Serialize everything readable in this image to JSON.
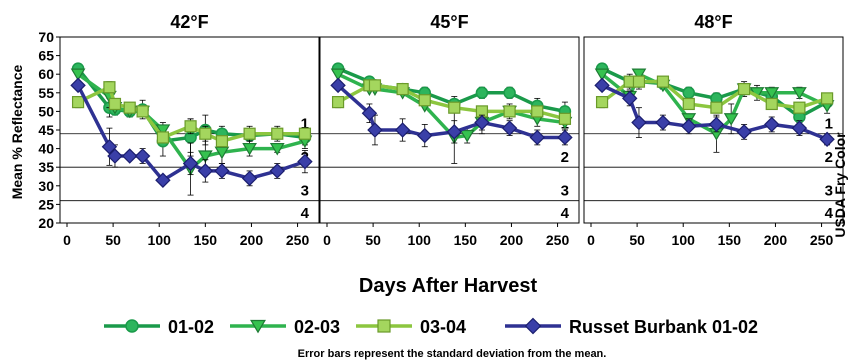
{
  "chart_data": {
    "type": "line",
    "xlabel": "Days After Harvest",
    "ylabel": "Mean % Reflectance",
    "y2label": "USDA Fry Color",
    "ylim": [
      20,
      70
    ],
    "xlim": [
      0,
      270
    ],
    "y_ticks": [
      "20",
      "25",
      "30",
      "35",
      "40",
      "45",
      "50",
      "55",
      "60",
      "65",
      "70"
    ],
    "x_ticks": [
      "0",
      "50",
      "100",
      "150",
      "200",
      "250"
    ],
    "note": "Error bars represent the standard deviation from the mean.",
    "fry_color_lines": [
      {
        "label": "1",
        "y": 44
      },
      {
        "label": "2",
        "y": 35
      },
      {
        "label": "3",
        "y": 26
      },
      {
        "label": "4",
        "y": 20
      }
    ],
    "legend": [
      {
        "name": "01-02",
        "marker": "circle",
        "color": "#1a9a4a",
        "fill": "#2db55d"
      },
      {
        "name": "02-03",
        "marker": "triangle",
        "color": "#2fb34e",
        "fill": "#36c24f"
      },
      {
        "name": "03-04",
        "marker": "square",
        "color": "#8cc63f",
        "fill": "#a4d65e"
      },
      {
        "name": "Russet Burbank 01-02",
        "marker": "diamond",
        "color": "#2e3192",
        "fill": "#3a3fa8"
      }
    ],
    "panels": [
      {
        "title": "42°F",
        "series": [
          {
            "x": [
              12,
              46,
              52,
              68,
              82,
              104,
              134,
              150,
              168,
              198,
              228,
              258
            ],
            "y": [
              61.5,
              51,
              50.5,
              50,
              50.5,
              42,
              43,
              45,
              44,
              43.5,
              44,
              43
            ],
            "err": [
              1,
              2.5,
              1.5,
              1.5,
              2.5,
              4,
              5,
              4,
              2,
              1.5,
              2,
              2
            ]
          },
          {
            "x": [
              12,
              46,
              52,
              68,
              82,
              104,
              134,
              150,
              168,
              198,
              228,
              258
            ],
            "y": [
              60,
              54,
              51,
              50,
              50,
              45,
              34.5,
              38,
              39,
              40,
              40,
              42
            ],
            "err": [
              0,
              3,
              0,
              0,
              0,
              2,
              7,
              5,
              3,
              2,
              1,
              2
            ]
          },
          {
            "x": [
              12,
              46,
              52,
              68,
              82,
              104,
              134,
              150,
              168,
              198,
              228,
              258
            ],
            "y": [
              52.5,
              56.5,
              52,
              51,
              50,
              43,
              46,
              44,
              42,
              44,
              44,
              44
            ],
            "err": [
              1.5,
              1.5,
              0,
              0,
              0,
              1,
              2,
              2,
              1,
              2,
              1,
              1
            ]
          },
          {
            "x": [
              12,
              46,
              52,
              68,
              82,
              104,
              134,
              150,
              168,
              198,
              228,
              258
            ],
            "y": [
              57,
              40.5,
              38,
              38,
              38,
              31.5,
              36,
              34,
              34,
              32,
              34,
              36.5
            ],
            "err": [
              1,
              5,
              3,
              0,
              2,
              0,
              3,
              3,
              2,
              2,
              2,
              3
            ]
          }
        ]
      },
      {
        "title": "45°F",
        "series": [
          {
            "x": [
              12,
              46,
              52,
              82,
              106,
              138,
              168,
              198,
              228,
              258
            ],
            "y": [
              61.5,
              58,
              57,
              56,
              55,
              52,
              55,
              55,
              51.5,
              50
            ],
            "err": [
              1,
              1,
              1,
              1,
              1.5,
              2,
              1.5,
              1.5,
              2,
              2.5
            ]
          },
          {
            "x": [
              12,
              46,
              52,
              82,
              106,
              138,
              152,
              168,
              198,
              228,
              258
            ],
            "y": [
              60,
              56,
              56,
              55,
              51.5,
              43,
              43.5,
              47,
              50,
              48,
              47
            ],
            "err": [
              0,
              0,
              0,
              0,
              0,
              7,
              2,
              3,
              2,
              2,
              2
            ]
          },
          {
            "x": [
              12,
              46,
              52,
              82,
              106,
              138,
              168,
              198,
              228,
              258
            ],
            "y": [
              52.5,
              57,
              57,
              56,
              53,
              51,
              50,
              50,
              50,
              48
            ],
            "err": [
              1.5,
              1,
              1,
              1,
              1,
              1,
              1,
              1,
              1,
              1
            ]
          },
          {
            "x": [
              12,
              46,
              52,
              82,
              106,
              138,
              168,
              198,
              228,
              258
            ],
            "y": [
              57,
              49.5,
              45,
              45,
              43.5,
              44.5,
              47,
              45.5,
              43,
              43
            ],
            "err": [
              1,
              2.5,
              4,
              3,
              3,
              3,
              2,
              2,
              2,
              2
            ]
          }
        ]
      },
      {
        "title": "48°F",
        "series": [
          {
            "x": [
              12,
              42,
              52,
              78,
              106,
              136,
              166,
              196,
              226,
              256
            ],
            "y": [
              61.5,
              58,
              58,
              57.5,
              55,
              53.5,
              56,
              54,
              48.5,
              52.5
            ],
            "err": [
              1,
              2,
              2,
              1.5,
              1.5,
              1.5,
              1.5,
              1.5,
              1.5,
              1.5
            ]
          },
          {
            "x": [
              12,
              42,
              52,
              78,
              106,
              136,
              152,
              166,
              180,
              196,
              226,
              256
            ],
            "y": [
              60,
              54,
              60,
              57,
              48,
              44,
              48,
              56,
              55,
              55,
              55,
              51.5
            ],
            "err": [
              0,
              0,
              0,
              0,
              0,
              5,
              4,
              2,
              2,
              1.5,
              1.5,
              2
            ]
          },
          {
            "x": [
              12,
              42,
              52,
              78,
              106,
              136,
              166,
              196,
              226,
              256
            ],
            "y": [
              52.5,
              58,
              58,
              58,
              52,
              51,
              56,
              52,
              51,
              53.5
            ],
            "err": [
              1.5,
              1.5,
              1,
              1,
              1,
              1,
              1,
              1,
              1,
              1
            ]
          },
          {
            "x": [
              12,
              42,
              52,
              78,
              106,
              136,
              166,
              196,
              226,
              256
            ],
            "y": [
              57,
              53.5,
              47,
              47,
              46,
              46.5,
              44.5,
              46.5,
              45.5,
              42.5
            ],
            "err": [
              1,
              2,
              4,
              2,
              2,
              2,
              2,
              2,
              2,
              1.5
            ]
          }
        ]
      }
    ]
  }
}
